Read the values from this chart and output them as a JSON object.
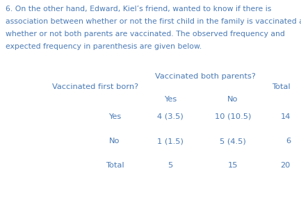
{
  "lines": [
    "6. On the other hand, Edward, Kiel’s friend, wanted to know if there is",
    "association between whether or not the first child in the family is vaccinated and",
    "whether or not both parents are vaccinated. The observed frequency and",
    "expected frequency in parenthesis are given below."
  ],
  "col_header_main": "Vaccinated both parents?",
  "row_header_main": "Vaccinated first born?",
  "col_sub_yes": "Yes",
  "col_sub_no": "No",
  "col_total": "Total",
  "row_yes": "Yes",
  "row_no": "No",
  "row_total": "Total",
  "cell_yes_yes": "4 (3.5)",
  "cell_yes_no": "10 (10.5)",
  "cell_yes_total": "14",
  "cell_no_yes": "1 (1.5)",
  "cell_no_no": "5 (4.5)",
  "cell_no_total": "6",
  "cell_total_yes": "5",
  "cell_total_no": "15",
  "cell_total_total": "20",
  "text_color": "#4a7ab5",
  "bg_color": "#ffffff",
  "font_size_para": 7.8,
  "font_size_table": 8.2
}
